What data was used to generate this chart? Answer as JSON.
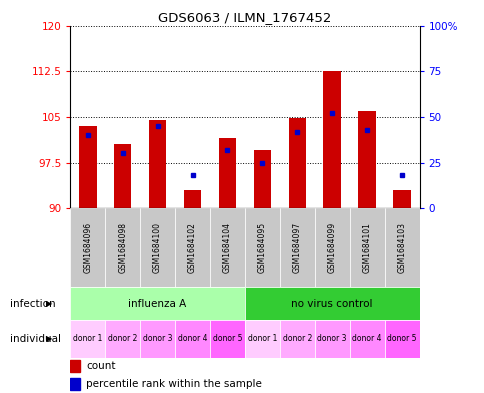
{
  "title": "GDS6063 / ILMN_1767452",
  "samples": [
    "GSM1684096",
    "GSM1684098",
    "GSM1684100",
    "GSM1684102",
    "GSM1684104",
    "GSM1684095",
    "GSM1684097",
    "GSM1684099",
    "GSM1684101",
    "GSM1684103"
  ],
  "red_values": [
    103.5,
    100.5,
    104.5,
    93.0,
    101.5,
    99.5,
    104.8,
    112.5,
    106.0,
    93.0
  ],
  "blue_percentiles": [
    40,
    30,
    45,
    18,
    32,
    25,
    42,
    52,
    43,
    18
  ],
  "ylim_left": [
    90,
    120
  ],
  "yticks_left": [
    90,
    97.5,
    105,
    112.5,
    120
  ],
  "yticks_right": [
    0,
    25,
    50,
    75,
    100
  ],
  "ylim_right": [
    0,
    100
  ],
  "individual_labels": [
    "donor 1",
    "donor 2",
    "donor 3",
    "donor 4",
    "donor 5",
    "donor 1",
    "donor 2",
    "donor 3",
    "donor 4",
    "donor 5"
  ],
  "bar_color": "#CC0000",
  "blue_color": "#0000CC",
  "infection_color_light": "#AAFFAA",
  "infection_color_dark": "#33CC33",
  "ind_colors": [
    "#FFCCFF",
    "#FFAAFF",
    "#FF99FF",
    "#FF88FF",
    "#FF66FF",
    "#FFCCFF",
    "#FFAAFF",
    "#FF99FF",
    "#FF88FF",
    "#FF66FF"
  ]
}
